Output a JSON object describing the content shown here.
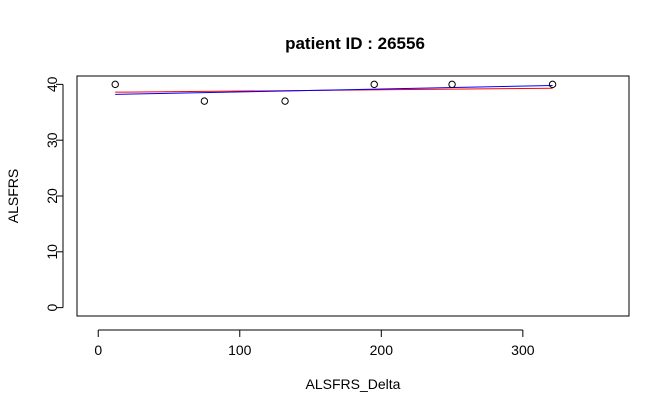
{
  "chart_data": {
    "type": "scatter",
    "title": "patient ID : 26556",
    "xlabel": "ALSFRS_Delta",
    "ylabel": "ALSFRS",
    "xlim": [
      -15,
      375
    ],
    "ylim": [
      -1.5,
      41.5
    ],
    "x_ticks": [
      0,
      100,
      200,
      300
    ],
    "y_ticks": [
      0,
      10,
      20,
      30,
      40
    ],
    "grid": false,
    "legend": "none",
    "points": {
      "x": [
        12,
        75,
        132,
        195,
        250,
        321
      ],
      "y": [
        40,
        37,
        37,
        40,
        40,
        40
      ]
    },
    "series": [
      {
        "x": [
          12,
          321
        ],
        "y": [
          38.6,
          39.3
        ],
        "color": "#ff0000"
      },
      {
        "x": [
          12,
          321
        ],
        "y": [
          38.2,
          39.8
        ],
        "color": "#0000ff"
      }
    ]
  }
}
